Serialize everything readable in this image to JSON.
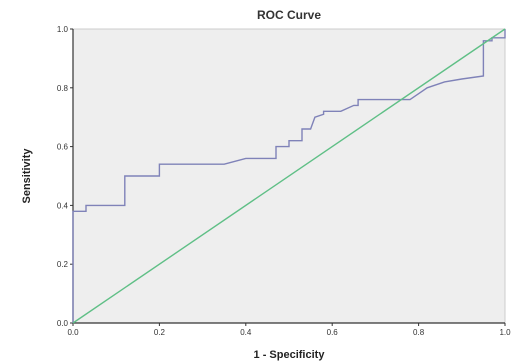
{
  "chart_data": {
    "type": "line",
    "title": "ROC Curve",
    "xlabel": "1 - Specificity",
    "ylabel": "Sensitivity",
    "xlim": [
      0.0,
      1.0
    ],
    "ylim": [
      0.0,
      1.0
    ],
    "x_ticks": [
      "0.0",
      "0.2",
      "0.4",
      "0.6",
      "0.8",
      "1.0"
    ],
    "y_ticks": [
      "0.0",
      "0.2",
      "0.4",
      "0.6",
      "0.8",
      "1.0"
    ],
    "grid": false,
    "legend": "none",
    "series": [
      {
        "role": "roc-curve",
        "color": "#7f82b8",
        "x": [
          0.0,
          0.0,
          0.03,
          0.03,
          0.12,
          0.12,
          0.2,
          0.2,
          0.35,
          0.4,
          0.47,
          0.47,
          0.5,
          0.5,
          0.53,
          0.53,
          0.55,
          0.56,
          0.58,
          0.58,
          0.62,
          0.65,
          0.66,
          0.66,
          0.7,
          0.78,
          0.8,
          0.82,
          0.86,
          0.9,
          0.95,
          0.95,
          0.97,
          0.97,
          1.0,
          1.0
        ],
        "y": [
          0.0,
          0.38,
          0.38,
          0.4,
          0.4,
          0.5,
          0.5,
          0.54,
          0.54,
          0.56,
          0.56,
          0.6,
          0.6,
          0.62,
          0.62,
          0.66,
          0.66,
          0.7,
          0.71,
          0.72,
          0.72,
          0.74,
          0.74,
          0.76,
          0.76,
          0.76,
          0.78,
          0.8,
          0.82,
          0.83,
          0.84,
          0.96,
          0.96,
          0.97,
          0.97,
          1.0
        ]
      },
      {
        "role": "reference-line",
        "color": "#5fbf86",
        "x": [
          0.0,
          1.0
        ],
        "y": [
          0.0,
          1.0
        ]
      }
    ],
    "colors": {
      "plot_background": "#eeeeee",
      "frame": "#cccccc",
      "axis": "#333333"
    }
  }
}
